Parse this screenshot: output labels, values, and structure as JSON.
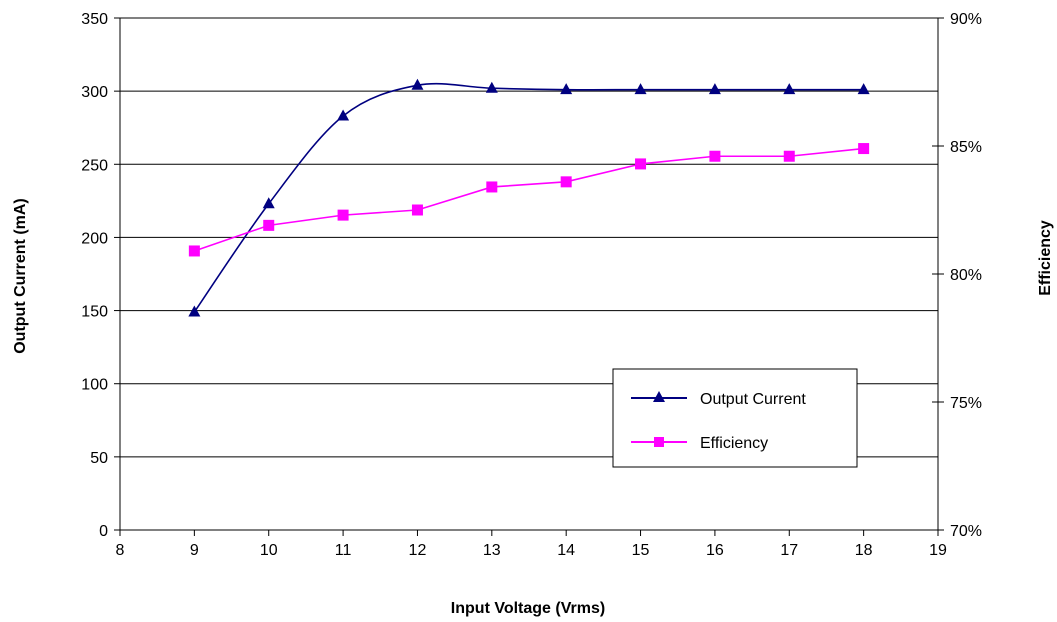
{
  "chart_data": {
    "type": "line",
    "xlabel": "Input Voltage (Vrms)",
    "ylabel_left": "Output Current (mA)",
    "ylabel_right": "Efficiency",
    "xlim": [
      8,
      19
    ],
    "x_ticks": [
      8,
      9,
      10,
      11,
      12,
      13,
      14,
      15,
      16,
      17,
      18,
      19
    ],
    "ylim_left": [
      0,
      350
    ],
    "y_ticks_left": [
      0,
      50,
      100,
      150,
      200,
      250,
      300,
      350
    ],
    "ylim_right": [
      70,
      90
    ],
    "y_ticks_right": [
      "70%",
      "75%",
      "80%",
      "85%",
      "90%"
    ],
    "y_ticks_right_values": [
      70,
      75,
      80,
      85,
      90
    ],
    "grid": "horizontal",
    "legend_position": "lower-right",
    "series": [
      {
        "name": "Output Current",
        "axis": "left",
        "color": "#000080",
        "marker": "triangle",
        "x": [
          9,
          10,
          11,
          12,
          13,
          14,
          15,
          16,
          17,
          18
        ],
        "values": [
          149,
          223,
          283,
          304,
          302,
          301,
          301,
          301,
          301,
          301
        ]
      },
      {
        "name": "Efficiency",
        "axis": "right",
        "color": "#ff00ff",
        "marker": "square",
        "x": [
          9,
          10,
          11,
          12,
          13,
          14,
          15,
          16,
          17,
          18
        ],
        "values": [
          80.9,
          81.9,
          82.3,
          82.5,
          83.4,
          83.6,
          84.3,
          84.6,
          84.6,
          84.9
        ]
      }
    ]
  }
}
